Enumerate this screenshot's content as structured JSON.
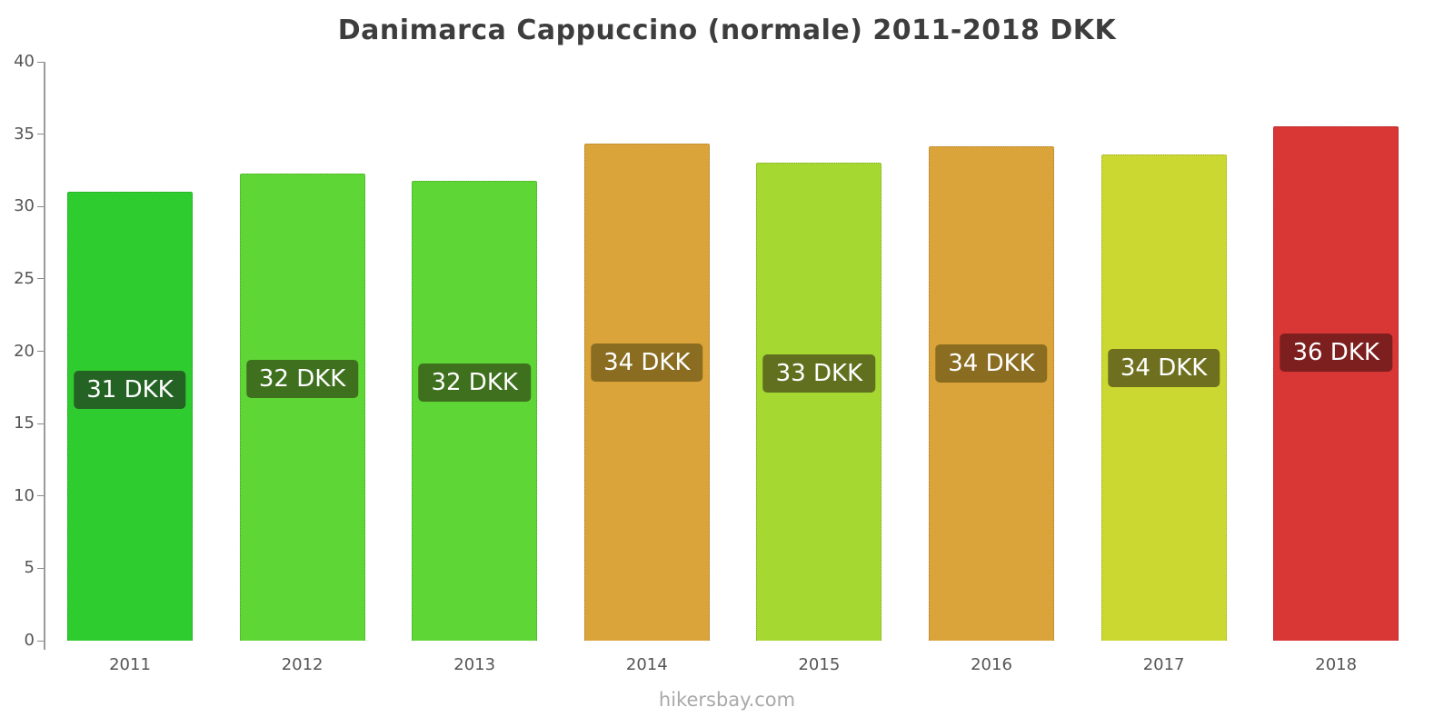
{
  "title": "Danimarca Cappuccino (normale) 2011-2018 DKK",
  "footer": "hikersbay.com",
  "chart_data": {
    "type": "bar",
    "title": "Danimarca Cappuccino (normale) 2011-2018 DKK",
    "xlabel": "",
    "ylabel": "",
    "categories": [
      "2011",
      "2012",
      "2013",
      "2014",
      "2015",
      "2016",
      "2017",
      "2018"
    ],
    "values": [
      31.0,
      32.3,
      31.8,
      34.35,
      33.0,
      34.15,
      33.6,
      35.55
    ],
    "data_labels": [
      "31 DKK",
      "32 DKK",
      "32 DKK",
      "34 DKK",
      "33 DKK",
      "34 DKK",
      "34 DKK",
      "36 DKK"
    ],
    "bar_colors": [
      "#2ecc2e",
      "#5ed636",
      "#5ed636",
      "#dba43a",
      "#a6d832",
      "#dba43a",
      "#ccd832",
      "#d93636"
    ],
    "label_bg_colors": [
      "#256325",
      "#3e701e",
      "#3e701e",
      "#8a6d20",
      "#61701f",
      "#8a6d20",
      "#6e701f",
      "#7d1f1f"
    ],
    "ylim": [
      0,
      40
    ],
    "yticks": [
      0,
      5,
      10,
      15,
      20,
      25,
      30,
      35,
      40
    ],
    "grid": "off",
    "legend": "none"
  }
}
